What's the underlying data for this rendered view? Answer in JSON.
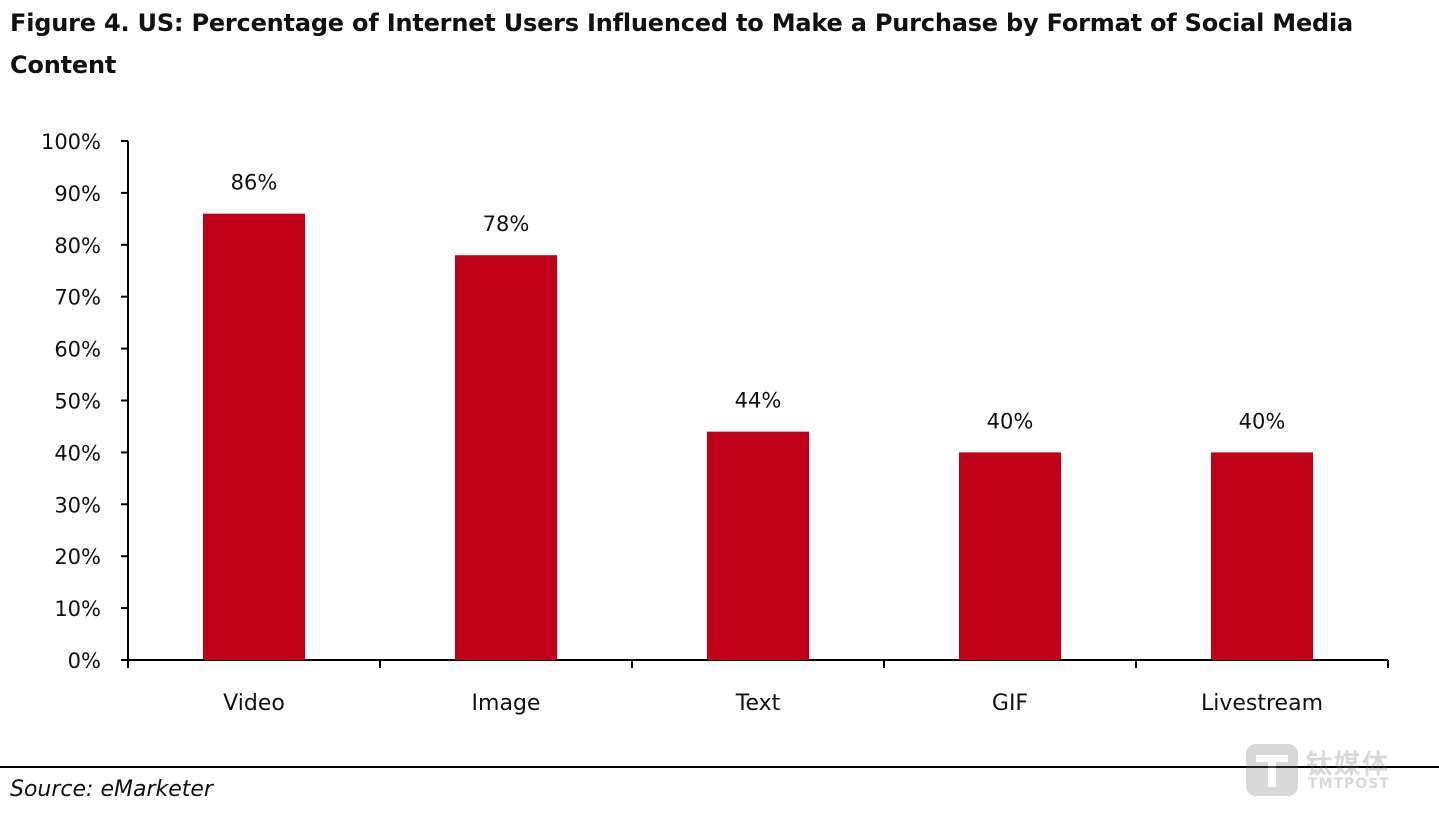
{
  "title": "Figure 4. US: Percentage of Internet Users Influenced to Make a Purchase by Format of Social Media Content",
  "source": "Source: eMarketer",
  "watermark": {
    "cn": "钛媒体",
    "en": "TMTPOST",
    "icon": "tmtpost-logo-icon"
  },
  "colors": {
    "bar": "#C0001A",
    "axis": "#000000",
    "text": "#111111"
  },
  "chart_data": {
    "type": "bar",
    "categories": [
      "Video",
      "Image",
      "Text",
      "GIF",
      "Livestream"
    ],
    "values": [
      86,
      78,
      44,
      40,
      40
    ],
    "data_labels": [
      "86%",
      "78%",
      "44%",
      "40%",
      "40%"
    ],
    "yticks": [
      "0%",
      "10%",
      "20%",
      "30%",
      "40%",
      "50%",
      "60%",
      "70%",
      "80%",
      "90%",
      "100%"
    ],
    "ylim": [
      0,
      100
    ],
    "xlabel": "",
    "ylabel": "",
    "grid": false,
    "legend": "none"
  }
}
